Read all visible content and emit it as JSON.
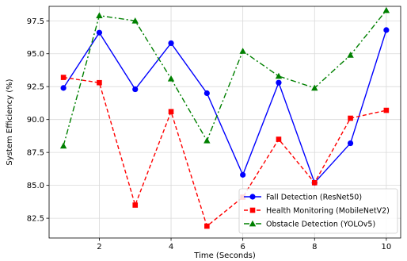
{
  "chart_data": {
    "type": "line",
    "title": "",
    "xlabel": "Time (Seconds)",
    "ylabel": "System Efficiency (%)",
    "xlim": [
      0.6,
      10.4
    ],
    "ylim": [
      81.0,
      98.6
    ],
    "xticks": [
      2,
      4,
      6,
      8,
      10
    ],
    "yticks": [
      82.5,
      85.0,
      87.5,
      90.0,
      92.5,
      95.0,
      97.5
    ],
    "grid": true,
    "legend_position": "lower-right",
    "x": [
      1,
      2,
      3,
      4,
      5,
      6,
      7,
      8,
      9,
      10
    ],
    "series": [
      {
        "name": "Fall Detection (ResNet50)",
        "values": [
          92.4,
          96.6,
          92.3,
          95.8,
          92.0,
          85.8,
          92.8,
          85.2,
          88.2,
          96.8
        ],
        "color": "#0000ff",
        "line_style": "solid",
        "marker": "circle"
      },
      {
        "name": "Health Monitoring (MobileNetV2)",
        "values": [
          93.2,
          92.8,
          83.5,
          90.6,
          81.9,
          84.1,
          88.5,
          85.2,
          90.1,
          90.7
        ],
        "color": "#ff0000",
        "line_style": "dashed",
        "marker": "square"
      },
      {
        "name": "Obstacle Detection (YOLOv5)",
        "values": [
          88.0,
          97.9,
          97.5,
          93.1,
          88.4,
          95.2,
          93.3,
          92.4,
          94.9,
          98.3
        ],
        "color": "#008000",
        "line_style": "dashdot",
        "marker": "triangle"
      }
    ]
  }
}
